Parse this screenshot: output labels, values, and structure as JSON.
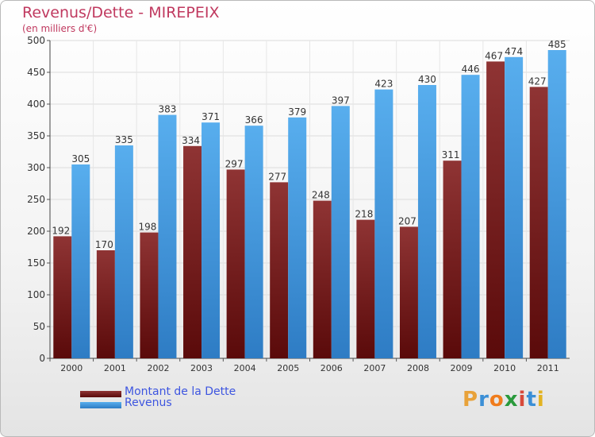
{
  "header": {
    "title": "Revenus/Dette - MIREPEIX",
    "subtitle": "(en milliers d'€)"
  },
  "legend": {
    "items": [
      {
        "label": "Montant de la Dette",
        "color": "#7a1c1c"
      },
      {
        "label": "Revenus",
        "color": "#4da3e8"
      }
    ]
  },
  "logo": {
    "text": "Proxiti",
    "letters": [
      "P",
      "r",
      "o",
      "x",
      "i",
      "t",
      "i"
    ],
    "colors": [
      "#e8a23a",
      "#3b8fd6",
      "#f07c1c",
      "#2a9a3c",
      "#d84a3a",
      "#3b8fd6",
      "#e3b321"
    ]
  },
  "chart_data": {
    "type": "bar",
    "title": "Revenus/Dette - MIREPEIX",
    "subtitle": "(en milliers d'€)",
    "categories": [
      "2000",
      "2001",
      "2002",
      "2003",
      "2004",
      "2005",
      "2006",
      "2007",
      "2008",
      "2009",
      "2010",
      "2011"
    ],
    "series": [
      {
        "name": "Montant de la Dette",
        "color": "#7a1c1c",
        "values": [
          192,
          170,
          198,
          334,
          297,
          277,
          248,
          218,
          207,
          311,
          467,
          427
        ]
      },
      {
        "name": "Revenus",
        "color": "#4da3e8",
        "values": [
          305,
          335,
          383,
          371,
          366,
          379,
          397,
          423,
          430,
          446,
          474,
          485
        ]
      }
    ],
    "ylim": [
      0,
      500
    ],
    "yticks": [
      0,
      50,
      100,
      150,
      200,
      250,
      300,
      350,
      400,
      450,
      500
    ],
    "grid": true,
    "legend_position": "bottom-left"
  }
}
